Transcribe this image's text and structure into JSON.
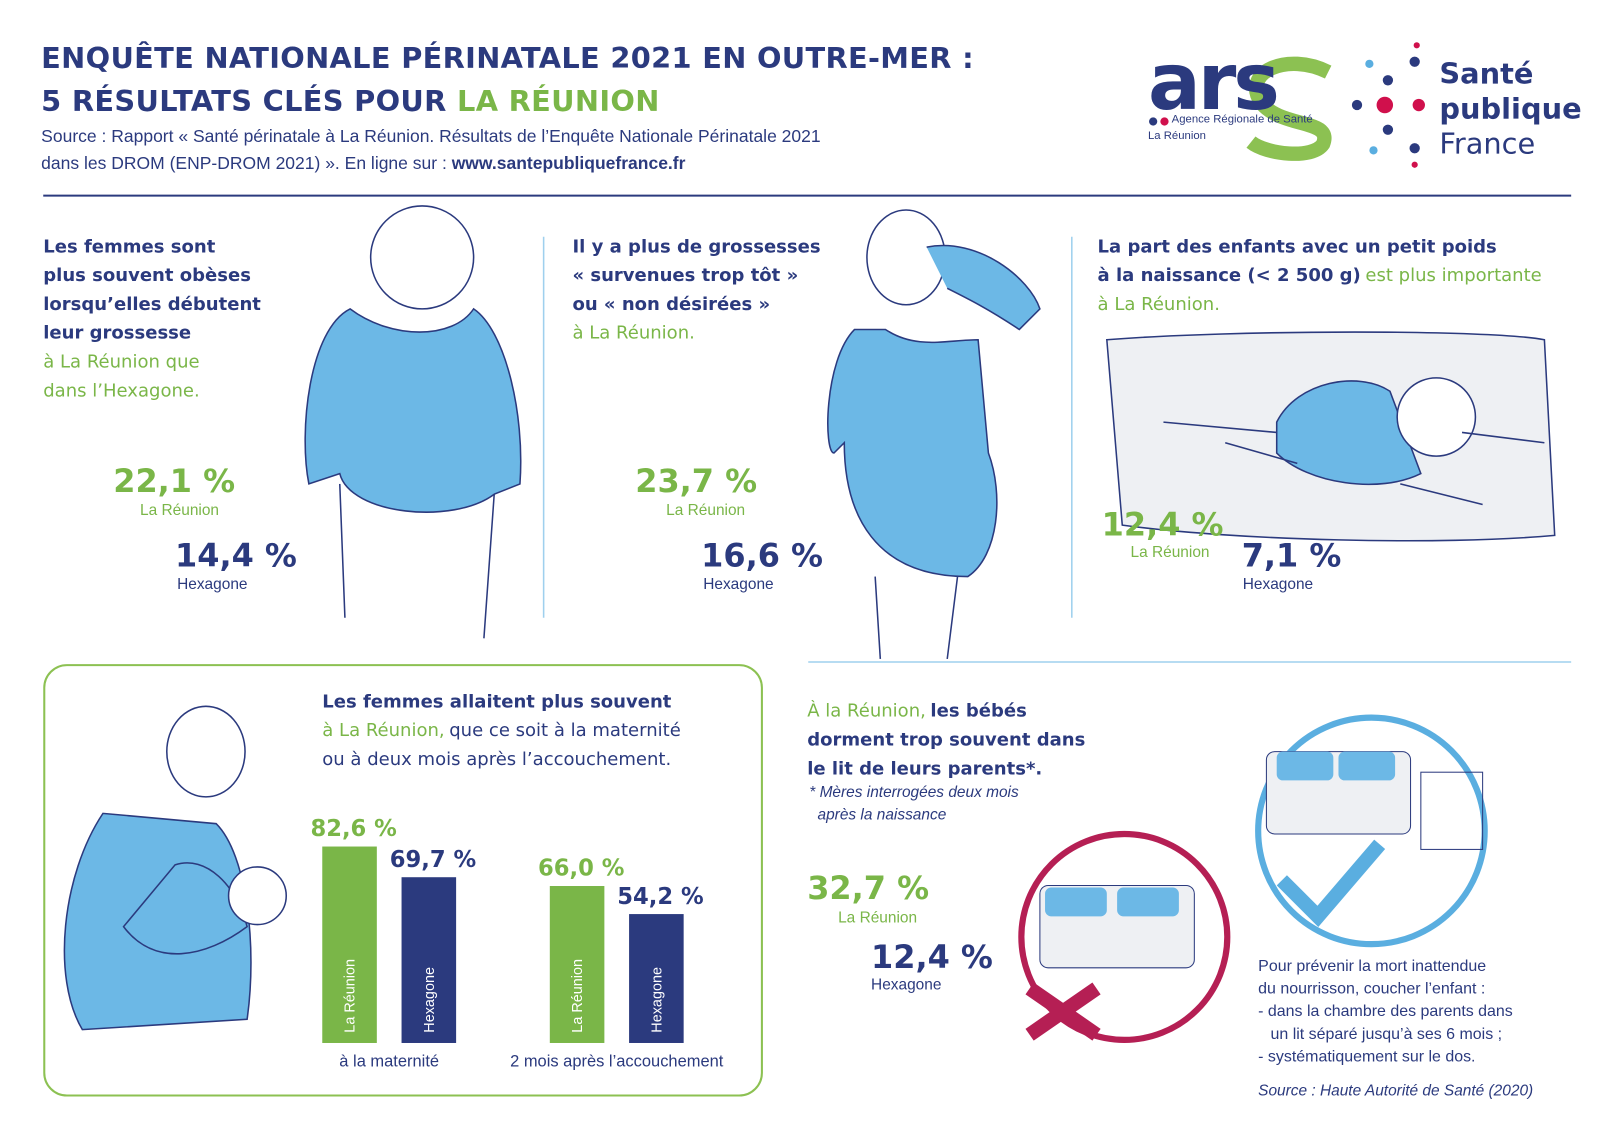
{
  "header": {
    "title_line1": "ENQUÊTE NATIONALE PÉRINATALE 2021 EN OUTRE-MER :",
    "title_line2_a": "5 RÉSULTATS CLÉS POUR",
    "title_line2_b": "LA RÉUNION",
    "source_line1": "Source : Rapport « Santé périnatale à La Réunion. Résultats de l’Enquête Nationale Périnatale 2021",
    "source_line2_a": "dans les DROM (ENP-DROM 2021) ». En ligne sur :",
    "source_line2_b": "www.santepubliquefrance.fr"
  },
  "logos": {
    "ars": {
      "name": "ars",
      "subtitle": "Agence Régionale de Santé",
      "region": "La Réunion"
    },
    "spf": [
      "Santé",
      "publique",
      "France"
    ]
  },
  "results": [
    {
      "bold": [
        "Les femmes sont",
        "plus souvent obèses",
        "lorsqu’elles débutent",
        "leur grossesse"
      ],
      "green": [
        "à La Réunion que",
        "dans l’Hexagone."
      ],
      "reunion": {
        "value": "22,1 %",
        "label": "La Réunion"
      },
      "hexagone": {
        "value": "14,4 %",
        "label": "Hexagone"
      }
    },
    {
      "bold": [
        "Il y a plus de grossesses",
        "« survenues trop tôt »",
        "ou « non désirées »"
      ],
      "green": [
        "à La Réunion."
      ],
      "reunion": {
        "value": "23,7 %",
        "label": "La Réunion"
      },
      "hexagone": {
        "value": "16,6 %",
        "label": "Hexagone"
      }
    },
    {
      "bold": [
        "La part des enfants avec un petit poids",
        "à la naissance (< 2 500 g)"
      ],
      "green": [
        "est plus importante",
        "à La Réunion."
      ],
      "reunion": {
        "value": "12,4 %",
        "label": "La Réunion"
      },
      "hexagone": {
        "value": "7,1 %",
        "label": "Hexagone"
      }
    },
    {
      "bold": [
        "Les femmes allaitent plus souvent"
      ],
      "green": [
        "à La Réunion,"
      ],
      "plain": [
        "que ce soit à la maternité",
        "ou à deux mois après l’accouchement."
      ],
      "chart": {
        "type": "bar",
        "categories": [
          "à la maternité",
          "2 mois après l’accouchement"
        ],
        "series": [
          {
            "name": "La Réunion",
            "color": "#7ab648",
            "values": [
              82.6,
              66.0
            ],
            "value_labels": [
              "82,6 %",
              "66,0 %"
            ]
          },
          {
            "name": "Hexagone",
            "color": "#2b3a7e",
            "values": [
              69.7,
              54.2
            ],
            "value_labels": [
              "69,7 %",
              "54,2 %"
            ]
          }
        ]
      }
    },
    {
      "green": [
        "À la Réunion,"
      ],
      "bold": [
        "les bébés",
        "dorment trop souvent dans",
        "le lit de leurs parents*."
      ],
      "note": [
        "* Mères interrogées deux mois",
        "après la naissance"
      ],
      "reunion": {
        "value": "32,7 %",
        "label": "La Réunion"
      },
      "hexagone": {
        "value": "12,4 %",
        "label": "Hexagone"
      },
      "advice": [
        "Pour prévenir la mort inattendue",
        "du nourrisson, coucher l’enfant :",
        "- dans la chambre des parents dans",
        "un lit séparé jusqu’à ses 6 mois ;",
        "- systématiquement sur le dos."
      ],
      "source": "Source : Haute Autorité de Santé (2020)"
    }
  ]
}
